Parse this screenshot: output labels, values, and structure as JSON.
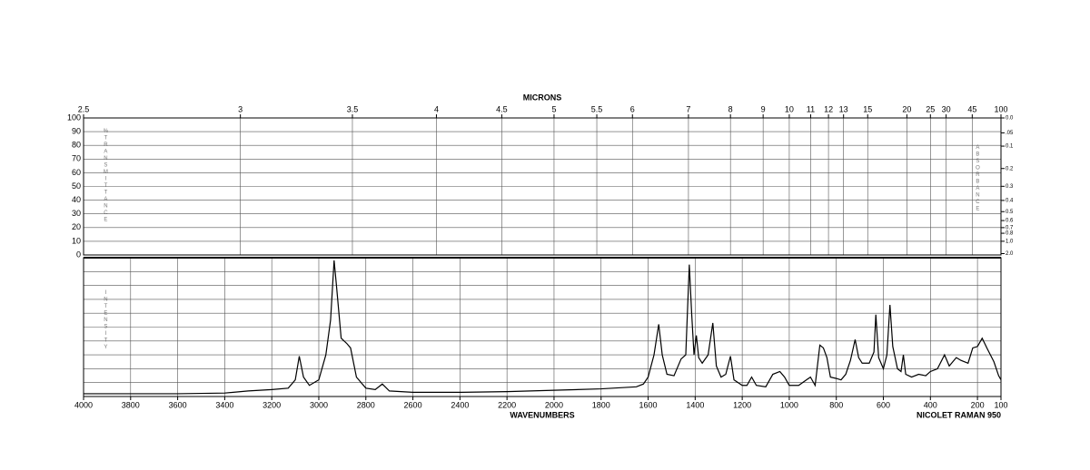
{
  "chart_data": {
    "type": "line",
    "top_axis_label": "MICRONS",
    "x_label": "WAVENUMBERS",
    "instrument": "NICOLET RAMAN 950",
    "y_label": "%TRANSMITTANCE",
    "y2_label": "ABSORBANCE",
    "y3_label": "INTENSITY",
    "xlim": [
      4000,
      100
    ],
    "xticks": [
      4000,
      3800,
      3600,
      3400,
      3200,
      3000,
      2800,
      2600,
      2400,
      2200,
      2000,
      1800,
      1600,
      1400,
      1200,
      1000,
      800,
      600,
      400,
      200,
      100
    ],
    "x2ticks": [
      2.5,
      3,
      3.5,
      4,
      4.5,
      5,
      5.5,
      6,
      7,
      8,
      9,
      10,
      11,
      12,
      13,
      15,
      20,
      25,
      30,
      45,
      100
    ],
    "ylim": [
      0,
      100
    ],
    "yticks": [
      100,
      90,
      80,
      70,
      60,
      50,
      40,
      30,
      20,
      10,
      0
    ],
    "y2ticks": [
      {
        "value": 0,
        "label": "0.0"
      },
      {
        "value": 0.05,
        "label": ".05"
      },
      0.1,
      0.2,
      0.3,
      0.4,
      0.5,
      0.6,
      0.7,
      0.8,
      {
        "value": 1,
        "label": "1.0"
      },
      {
        "value": 2,
        "label": "2.0"
      }
    ],
    "y3lim": [
      0,
      100
    ],
    "grid": true,
    "grid_rows": 10,
    "series": [
      {
        "name": "INTENSITY",
        "color": "#000000",
        "x": [
          4000,
          3800,
          3600,
          3400,
          3300,
          3200,
          3130,
          3100,
          3083,
          3065,
          3040,
          3000,
          2970,
          2950,
          2935,
          2925,
          2905,
          2880,
          2865,
          2840,
          2800,
          2760,
          2730,
          2700,
          2600,
          2400,
          2200,
          2000,
          1800,
          1650,
          1620,
          1600,
          1575,
          1555,
          1540,
          1520,
          1490,
          1460,
          1440,
          1425,
          1415,
          1405,
          1395,
          1385,
          1370,
          1345,
          1325,
          1310,
          1290,
          1270,
          1250,
          1235,
          1200,
          1180,
          1160,
          1140,
          1100,
          1070,
          1040,
          1020,
          1000,
          960,
          935,
          910,
          890,
          870,
          855,
          840,
          825,
          800,
          780,
          760,
          740,
          720,
          705,
          690,
          660,
          640,
          632,
          620,
          600,
          585,
          572,
          560,
          540,
          525,
          515,
          505,
          480,
          450,
          420,
          400,
          370,
          340,
          320,
          290,
          270,
          240,
          220,
          200,
          180,
          160,
          130,
          110,
          100
        ],
        "values": [
          2,
          2,
          2,
          2.5,
          4,
          5,
          6,
          12,
          29,
          14,
          8,
          12,
          30,
          55,
          98,
          80,
          42,
          38,
          35,
          14,
          6,
          5,
          9,
          4,
          3,
          3,
          3.5,
          4.5,
          5.5,
          7,
          9,
          14,
          30,
          52,
          30,
          16,
          15,
          27,
          30,
          95,
          60,
          30,
          44,
          28,
          24,
          30,
          53,
          22,
          14,
          16,
          29,
          12,
          8,
          8,
          14,
          8,
          7,
          16,
          18,
          14,
          8,
          8,
          11,
          14,
          8,
          37,
          35,
          28,
          14,
          13,
          12,
          16,
          26,
          41,
          28,
          24,
          24,
          32,
          59,
          28,
          20,
          30,
          66,
          36,
          20,
          18,
          30,
          16,
          14,
          16,
          15,
          18,
          20,
          30,
          22,
          28,
          26,
          24,
          35,
          36,
          42,
          35,
          25,
          15,
          12
        ]
      }
    ]
  }
}
